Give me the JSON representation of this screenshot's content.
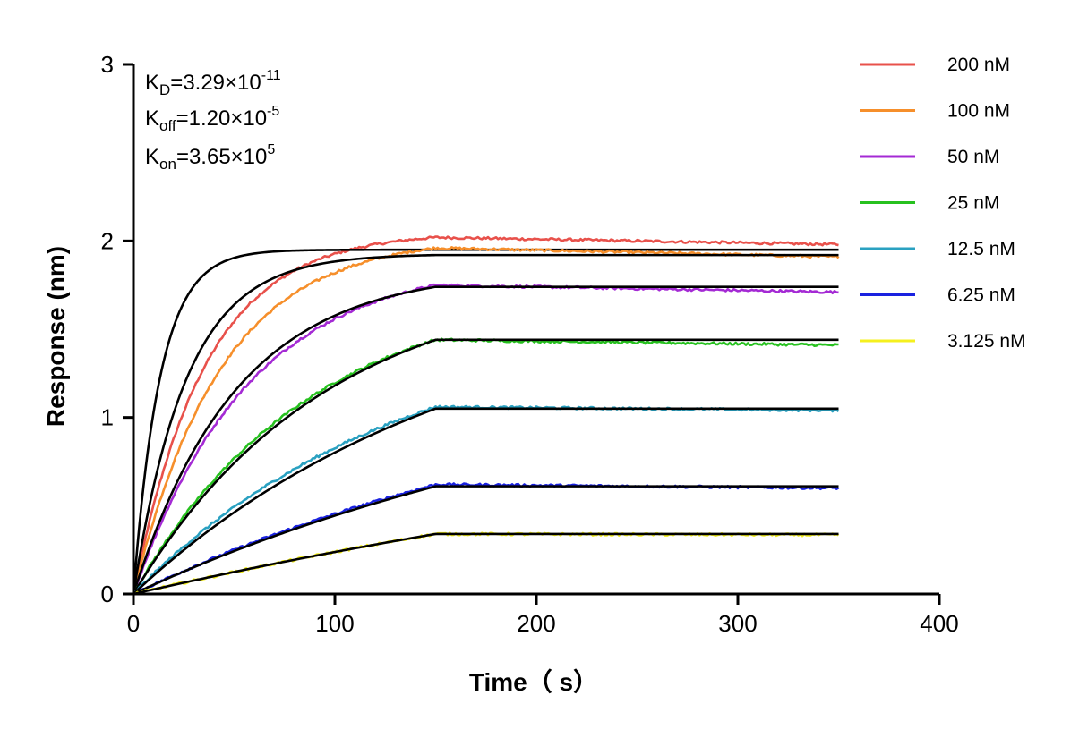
{
  "chart_data": {
    "type": "line",
    "xlabel": "Time（ s）",
    "ylabel": "Response (nm)",
    "xlim": [
      0,
      400
    ],
    "ylim": [
      0,
      3
    ],
    "x_ticks": [
      "0",
      "100",
      "200",
      "300",
      "400"
    ],
    "y_ticks": [
      "0",
      "1",
      "2",
      "3"
    ],
    "grid": false,
    "legend_position": "right",
    "association_end_s": 150,
    "end_s": 350,
    "annotations": {
      "kd": {
        "label": "K",
        "sub": "D",
        "mantissa": "=3.29×10",
        "exp": "-11"
      },
      "koff": {
        "label": "K",
        "sub": "off",
        "mantissa": "=1.20×10",
        "exp": "-5"
      },
      "kon": {
        "label": "K",
        "sub": "on",
        "mantissa": "=3.65×10",
        "exp": "5"
      }
    },
    "fit_color": "#000000",
    "series": [
      {
        "name": "200 nM",
        "color": "#e8514b",
        "rmax": 2.02,
        "k_obs": 0.028,
        "fit_rmax": 1.95,
        "fit_k": 0.075,
        "dissoc_end": 1.98
      },
      {
        "name": "100 nM",
        "color": "#f68f2b",
        "rmax": 1.96,
        "k_obs": 0.023,
        "fit_rmax": 1.92,
        "fit_k": 0.038,
        "dissoc_end": 1.91
      },
      {
        "name": "50 nM",
        "color": "#a42ad4",
        "rmax": 1.75,
        "k_obs": 0.0175,
        "fit_rmax": 1.74,
        "fit_k": 0.0195,
        "dissoc_end": 1.71
      },
      {
        "name": "25 nM",
        "color": "#27c11f",
        "rmax": 1.44,
        "k_obs": 0.0115,
        "fit_rmax": 1.44,
        "fit_k": 0.0105,
        "dissoc_end": 1.41
      },
      {
        "name": "12.5 nM",
        "color": "#2aa1c1",
        "rmax": 1.06,
        "k_obs": 0.0075,
        "fit_rmax": 1.05,
        "fit_k": 0.0062,
        "dissoc_end": 1.04
      },
      {
        "name": "6.25 nM",
        "color": "#1a22e0",
        "rmax": 0.62,
        "k_obs": 0.004,
        "fit_rmax": 0.61,
        "fit_k": 0.0038,
        "dissoc_end": 0.6
      },
      {
        "name": "3.125 nM",
        "color": "#f5f01e",
        "rmax": 0.34,
        "k_obs": 0.002,
        "fit_rmax": 0.34,
        "fit_k": 0.002,
        "dissoc_end": 0.335
      }
    ]
  }
}
